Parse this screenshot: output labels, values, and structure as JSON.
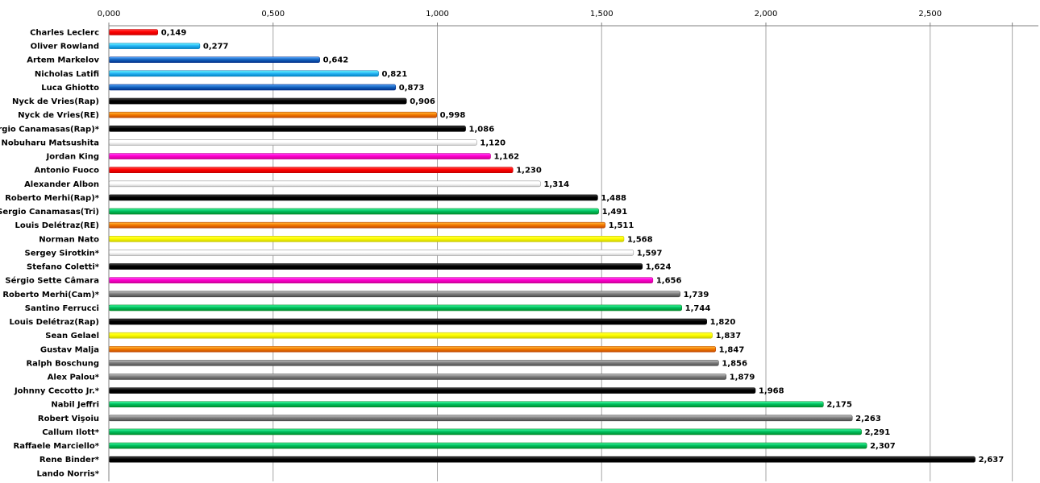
{
  "chart_data": {
    "type": "bar",
    "orientation": "horizontal",
    "xlim": [
      0,
      2.75
    ],
    "ticks": [
      0,
      0.5,
      1.0,
      1.5,
      2.0,
      2.5
    ],
    "tick_labels": [
      "0,000",
      "0,500",
      "1,000",
      "1,500",
      "2,000",
      "2,500"
    ],
    "axis_position": "top",
    "grid": "vertical",
    "legend": "none",
    "categories": [
      "Charles Leclerc",
      "Oliver Rowland",
      "Artem Markelov",
      "Nicholas Latifi",
      "Luca Ghiotto",
      "Nyck de Vries(Rap)",
      "Nyck de Vries(RE)",
      "Sergio Canamasas(Rap)*",
      "Nobuharu Matsushita",
      "Jordan King",
      "Antonio Fuoco",
      "Alexander Albon",
      "Roberto Merhi(Rap)*",
      "Sergio Canamasas(Tri)",
      "Louis Delétraz(RE)",
      "Norman Nato",
      "Sergey Sirotkin*",
      "Stefano Coletti*",
      "Sérgio Sette Câmara",
      "Roberto Merhi(Cam)*",
      "Santino Ferrucci",
      "Louis Delétraz(Rap)",
      "Sean Gelael",
      "Gustav Malja",
      "Ralph Boschung",
      "Alex Palou*",
      "Johnny Cecotto Jr.*",
      "Nabil Jeffri",
      "Robert Vişoiu",
      "Callum Ilott*",
      "Raffaele Marciello*",
      "Rene Binder*",
      "Lando Norris*"
    ],
    "values": [
      0.149,
      0.277,
      0.642,
      0.821,
      0.873,
      0.906,
      0.998,
      1.086,
      1.12,
      1.162,
      1.23,
      1.314,
      1.488,
      1.491,
      1.511,
      1.568,
      1.597,
      1.624,
      1.656,
      1.739,
      1.744,
      1.82,
      1.837,
      1.847,
      1.856,
      1.879,
      1.968,
      2.175,
      2.263,
      2.291,
      2.307,
      2.637,
      0
    ],
    "value_labels": [
      "0,149",
      "0,277",
      "0,642",
      "0,821",
      "0,873",
      "0,906",
      "0,998",
      "1,086",
      "1,120",
      "1,162",
      "1,230",
      "1,314",
      "1,488",
      "1,491",
      "1,511",
      "1,568",
      "1,597",
      "1,624",
      "1,656",
      "1,739",
      "1,744",
      "1,820",
      "1,837",
      "1,847",
      "1,856",
      "1,879",
      "1,968",
      "2,175",
      "2,263",
      "2,291",
      "2,307",
      "2,637",
      ""
    ],
    "colors": [
      "#ff0000",
      "#29b6f6",
      "#1565c0",
      "#29b6f6",
      "#1565c0",
      "#000000",
      "#f57c00",
      "#000000",
      "#ffffff",
      "#ff00cc",
      "#ff0000",
      "#ffffff",
      "#000000",
      "#00c060",
      "#f57c00",
      "#ffff00",
      "#ffffff",
      "#000000",
      "#ff00cc",
      "#808080",
      "#00c060",
      "#000000",
      "#ffff00",
      "#f57c00",
      "#808080",
      "#808080",
      "#000000",
      "#00c060",
      "#808080",
      "#00c060",
      "#00c060",
      "#000000",
      "#ffffff"
    ]
  }
}
